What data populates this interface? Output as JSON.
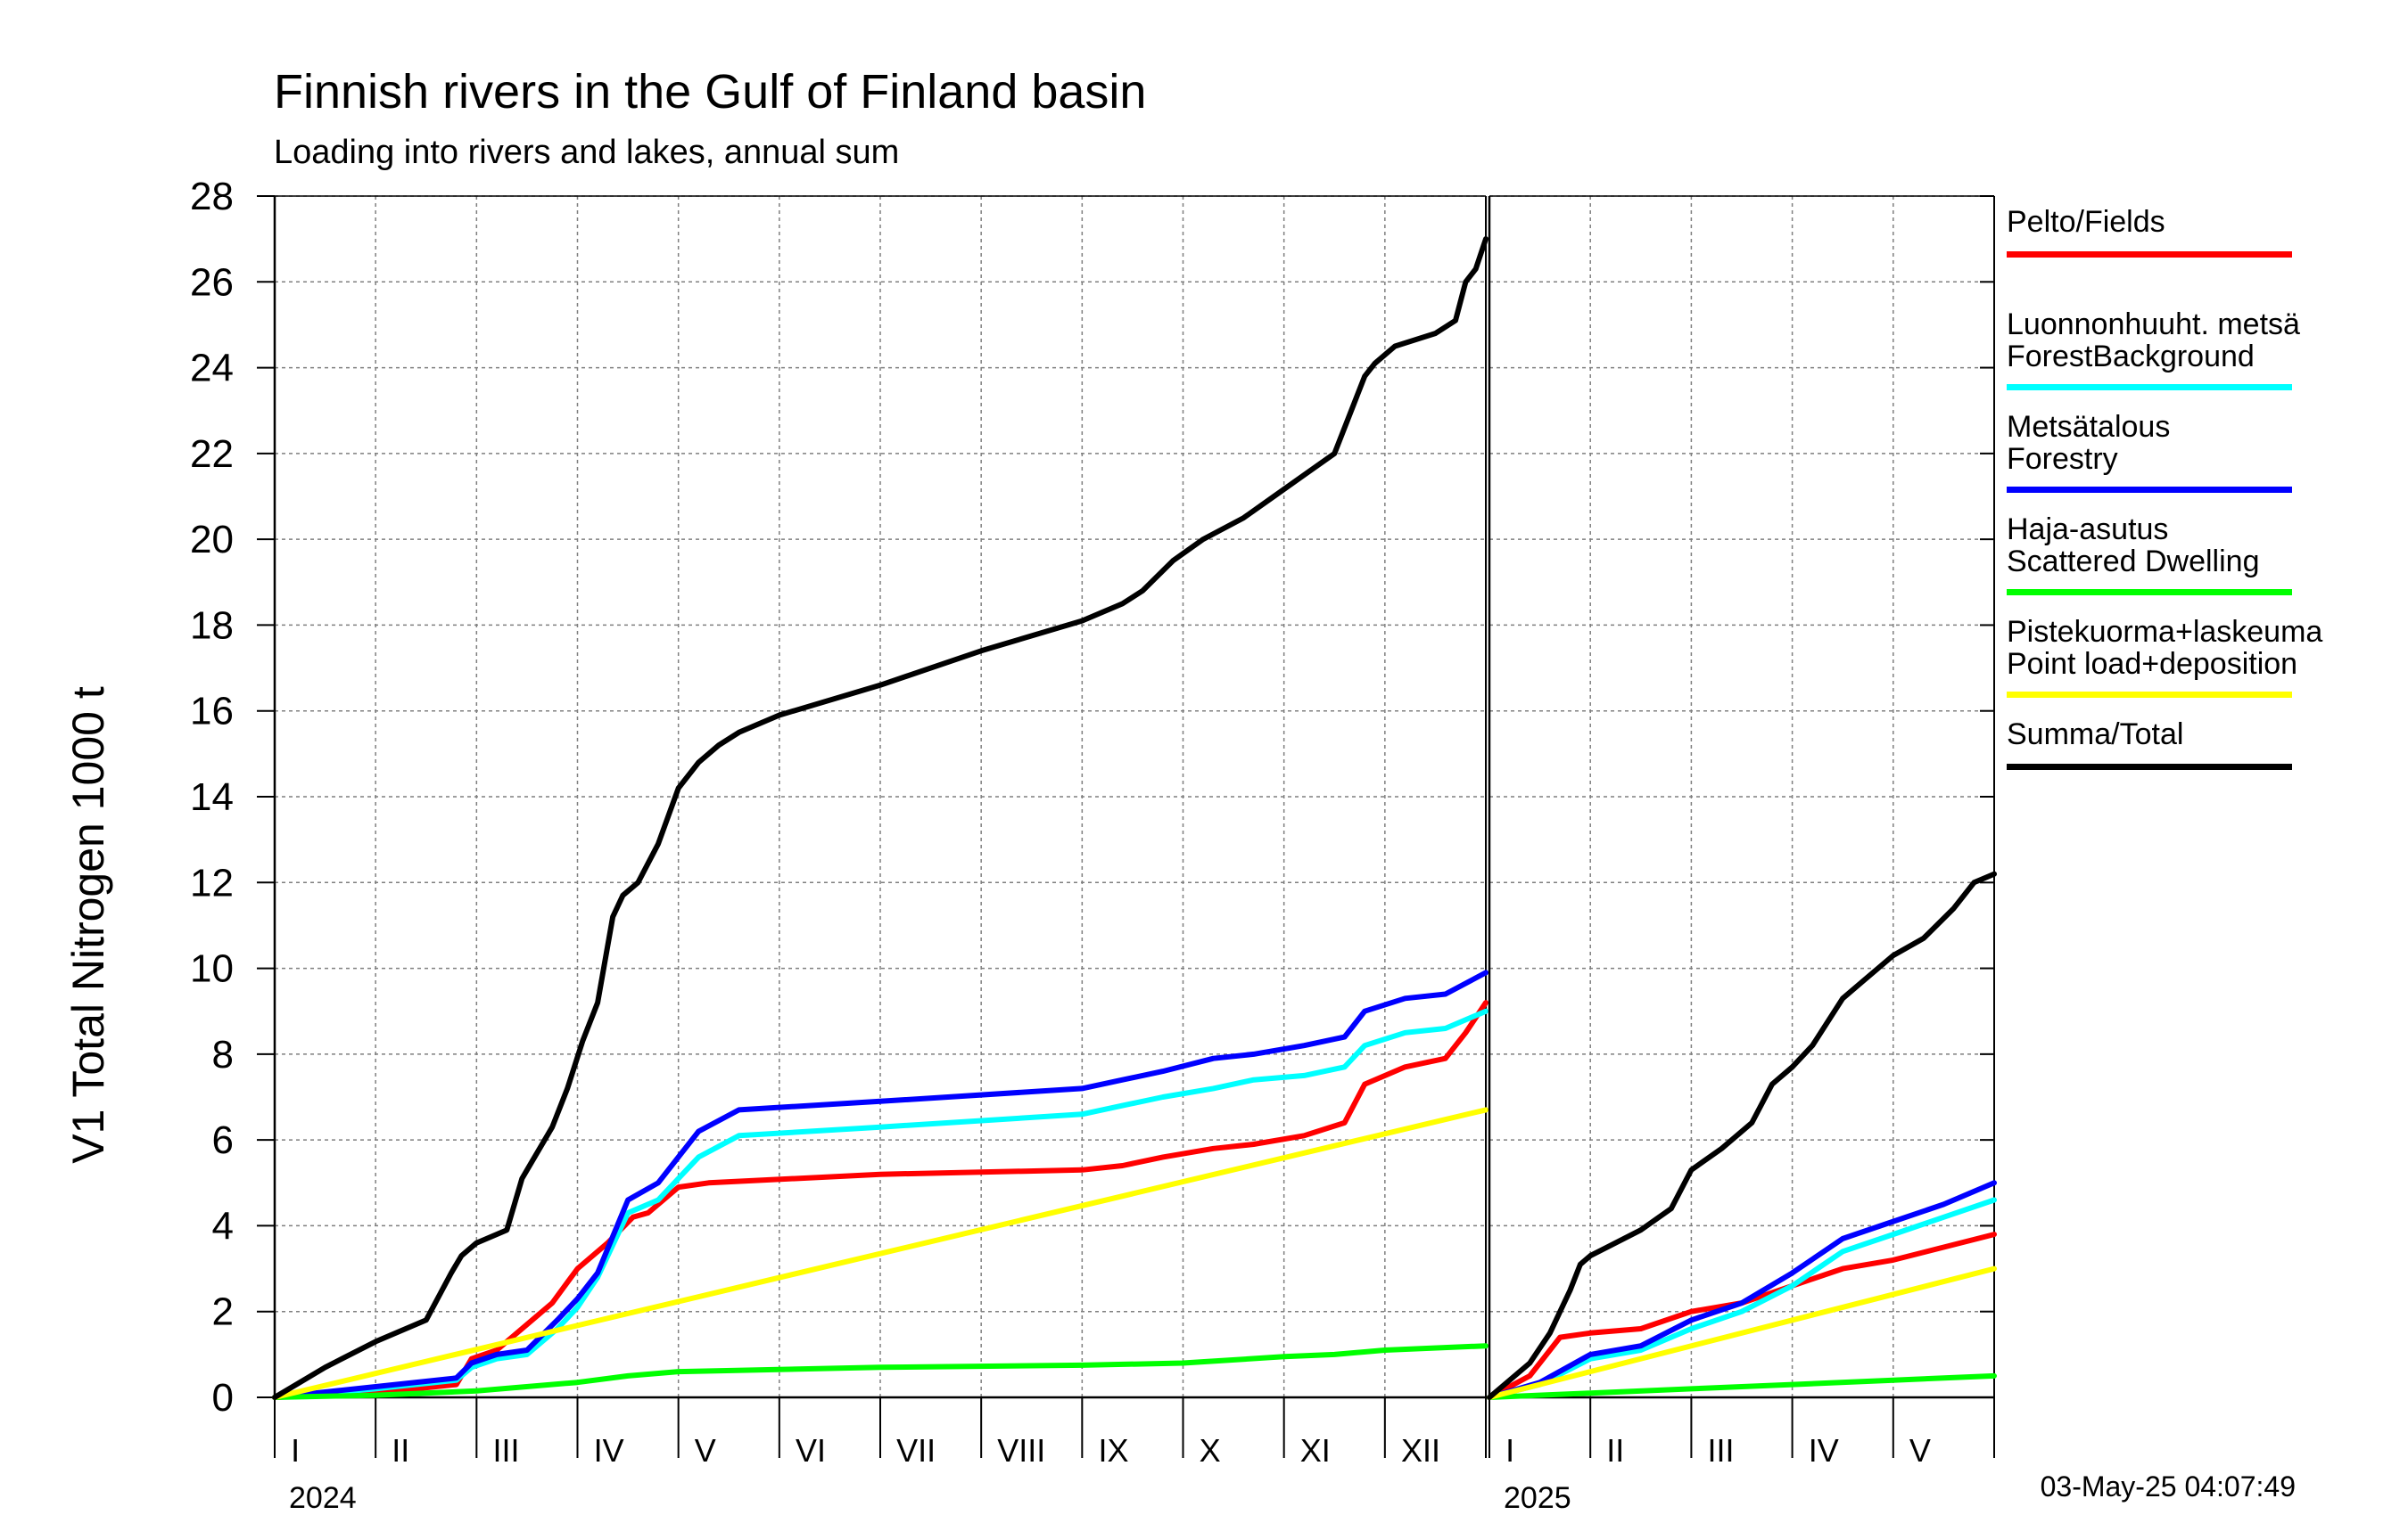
{
  "title": "Finnish rivers in the Gulf of Finland basin",
  "subtitle": "Loading into rivers and lakes, annual sum",
  "timestamp": "03-May-25 04:07:49",
  "chart_data": {
    "type": "line",
    "ylabel": "V1 Total Nitrogen 1000 t",
    "ylim": [
      0,
      28
    ],
    "yticks": [
      "0",
      "2",
      "4",
      "6",
      "8",
      "10",
      "12",
      "14",
      "16",
      "18",
      "20",
      "22",
      "24",
      "26",
      "28"
    ],
    "grid": true,
    "legend_position": "right",
    "panels": [
      {
        "year": "2024",
        "months": [
          "I",
          "II",
          "III",
          "IV",
          "V",
          "VI",
          "VII",
          "VIII",
          "IX",
          "X",
          "XI",
          "XII"
        ],
        "xlim": [
          0,
          12
        ],
        "series": [
          {
            "name_fi": "Pelto/Fields",
            "name_en": "",
            "color": "#ff0000",
            "x": [
              0,
              1.0,
              1.8,
              1.95,
              2.2,
              2.5,
              2.75,
              3.0,
              3.3,
              3.55,
              3.7,
              4.0,
              4.3,
              6.0,
              8.0,
              8.4,
              8.8,
              9.3,
              9.7,
              10.2,
              10.6,
              10.8,
              11.2,
              11.6,
              11.8,
              12.0
            ],
            "y": [
              0,
              0.1,
              0.3,
              0.9,
              1.1,
              1.7,
              2.2,
              3.0,
              3.6,
              4.2,
              4.3,
              4.9,
              5.0,
              5.2,
              5.3,
              5.4,
              5.6,
              5.8,
              5.9,
              6.1,
              6.4,
              7.3,
              7.7,
              7.9,
              8.5,
              9.2
            ]
          },
          {
            "name_fi": "Luonnonhuuht. metsä",
            "name_en": "ForestBackground",
            "color": "#00ffff",
            "x": [
              0,
              1.0,
              1.8,
              1.95,
              2.2,
              2.5,
              2.8,
              3.0,
              3.2,
              3.5,
              3.8,
              4.2,
              4.6,
              6.0,
              8.0,
              8.4,
              8.8,
              9.3,
              9.7,
              10.2,
              10.6,
              10.8,
              11.2,
              11.6,
              12.0
            ],
            "y": [
              0,
              0.2,
              0.4,
              0.7,
              0.9,
              1.0,
              1.6,
              2.1,
              2.8,
              4.3,
              4.6,
              5.6,
              6.1,
              6.3,
              6.6,
              6.8,
              7.0,
              7.2,
              7.4,
              7.5,
              7.7,
              8.2,
              8.5,
              8.6,
              9.0
            ]
          },
          {
            "name_fi": "Metsätalous",
            "name_en": "Forestry",
            "color": "#0000ff",
            "x": [
              0,
              1.0,
              1.8,
              1.95,
              2.2,
              2.5,
              2.8,
              3.0,
              3.2,
              3.5,
              3.8,
              4.2,
              4.6,
              6.0,
              8.0,
              8.4,
              8.8,
              9.3,
              9.7,
              10.2,
              10.6,
              10.8,
              11.2,
              11.6,
              12.0
            ],
            "y": [
              0,
              0.25,
              0.45,
              0.8,
              1.0,
              1.1,
              1.8,
              2.3,
              2.9,
              4.6,
              5.0,
              6.2,
              6.7,
              6.9,
              7.2,
              7.4,
              7.6,
              7.9,
              8.0,
              8.2,
              8.4,
              9.0,
              9.3,
              9.4,
              9.9
            ]
          },
          {
            "name_fi": "Haja-asutus",
            "name_en": "Scattered Dwelling",
            "color": "#00ff00",
            "x": [
              0,
              1.0,
              2.0,
              3.0,
              3.5,
              4.0,
              6.0,
              8.0,
              9.0,
              10.0,
              10.5,
              11.0,
              12.0
            ],
            "y": [
              0,
              0.05,
              0.15,
              0.35,
              0.5,
              0.6,
              0.7,
              0.75,
              0.8,
              0.95,
              1.0,
              1.1,
              1.2
            ]
          },
          {
            "name_fi": "Pistekuorma+laskeuma",
            "name_en": "Point load+deposition",
            "color": "#ffff00",
            "x": [
              0,
              12.0
            ],
            "y": [
              0,
              6.7
            ]
          },
          {
            "name_fi": "Summa/Total",
            "name_en": "",
            "color": "#000000",
            "x": [
              0,
              0.5,
              1.0,
              1.5,
              1.75,
              1.85,
              2.0,
              2.3,
              2.45,
              2.55,
              2.75,
              2.9,
              3.05,
              3.2,
              3.35,
              3.45,
              3.6,
              3.8,
              4.0,
              4.2,
              4.4,
              4.6,
              5.0,
              6.0,
              7.0,
              8.0,
              8.4,
              8.6,
              8.9,
              9.2,
              9.6,
              9.9,
              10.2,
              10.5,
              10.7,
              10.8,
              10.9,
              11.1,
              11.5,
              11.7,
              11.8,
              11.9,
              12.0
            ],
            "y": [
              0,
              0.7,
              1.3,
              1.8,
              2.9,
              3.3,
              3.6,
              3.9,
              5.1,
              5.5,
              6.3,
              7.2,
              8.3,
              9.2,
              11.2,
              11.7,
              12.0,
              12.9,
              14.2,
              14.8,
              15.2,
              15.5,
              15.9,
              16.6,
              17.4,
              18.1,
              18.5,
              18.8,
              19.5,
              20.0,
              20.5,
              21.0,
              21.5,
              22.0,
              23.2,
              23.8,
              24.1,
              24.5,
              24.8,
              25.1,
              26.0,
              26.3,
              27.0
            ]
          }
        ]
      },
      {
        "year": "2025",
        "months": [
          "I",
          "II",
          "III",
          "IV",
          "V"
        ],
        "xlim": [
          0,
          5
        ],
        "series": [
          {
            "name_fi": "Pelto/Fields",
            "color": "#ff0000",
            "x": [
              0,
              0.4,
              0.7,
              1.0,
              1.5,
              2.0,
              2.5,
              3.0,
              3.5,
              4.0,
              4.5,
              5.0
            ],
            "y": [
              0,
              0.5,
              1.4,
              1.5,
              1.6,
              2.0,
              2.2,
              2.6,
              3.0,
              3.2,
              3.5,
              3.8
            ]
          },
          {
            "name_fi": "Luonnonhuuht. metsä",
            "color": "#00ffff",
            "x": [
              0,
              0.5,
              1.0,
              1.5,
              2.0,
              2.5,
              3.0,
              3.5,
              4.0,
              4.5,
              5.0
            ],
            "y": [
              0,
              0.3,
              0.9,
              1.1,
              1.6,
              2.0,
              2.6,
              3.4,
              3.8,
              4.2,
              4.6
            ]
          },
          {
            "name_fi": "Metsätalous",
            "color": "#0000ff",
            "x": [
              0,
              0.5,
              1.0,
              1.5,
              2.0,
              2.5,
              3.0,
              3.5,
              4.0,
              4.5,
              5.0
            ],
            "y": [
              0,
              0.35,
              1.0,
              1.2,
              1.8,
              2.2,
              2.9,
              3.7,
              4.1,
              4.5,
              5.0
            ]
          },
          {
            "name_fi": "Haja-asutus",
            "color": "#00ff00",
            "x": [
              0,
              1.0,
              2.0,
              3.0,
              4.0,
              5.0
            ],
            "y": [
              0,
              0.1,
              0.2,
              0.3,
              0.4,
              0.5
            ]
          },
          {
            "name_fi": "Pistekuorma+laskeuma",
            "color": "#ffff00",
            "x": [
              0,
              5.0
            ],
            "y": [
              0,
              3.0
            ]
          },
          {
            "name_fi": "Summa/Total",
            "color": "#000000",
            "x": [
              0,
              0.4,
              0.6,
              0.8,
              0.9,
              1.0,
              1.5,
              1.8,
              2.0,
              2.3,
              2.6,
              2.8,
              3.0,
              3.2,
              3.5,
              3.7,
              4.0,
              4.3,
              4.6,
              4.8,
              5.0
            ],
            "y": [
              0,
              0.8,
              1.5,
              2.5,
              3.1,
              3.3,
              3.9,
              4.4,
              5.3,
              5.8,
              6.4,
              7.3,
              7.7,
              8.2,
              9.3,
              9.7,
              10.3,
              10.7,
              11.4,
              12.0,
              12.2
            ]
          }
        ]
      }
    ]
  },
  "legend": [
    {
      "line1": "Pelto/Fields",
      "line2": "",
      "color": "#ff0000"
    },
    {
      "line1": "Luonnonhuuht. metsä",
      "line2": "ForestBackground",
      "color": "#00ffff"
    },
    {
      "line1": "Metsätalous",
      "line2": "Forestry",
      "color": "#0000ff"
    },
    {
      "line1": "Haja-asutus",
      "line2": "Scattered Dwelling",
      "color": "#00ff00"
    },
    {
      "line1": "Pistekuorma+laskeuma",
      "line2": "Point load+deposition",
      "color": "#ffff00"
    },
    {
      "line1": "Summa/Total",
      "line2": "",
      "color": "#000000"
    }
  ]
}
